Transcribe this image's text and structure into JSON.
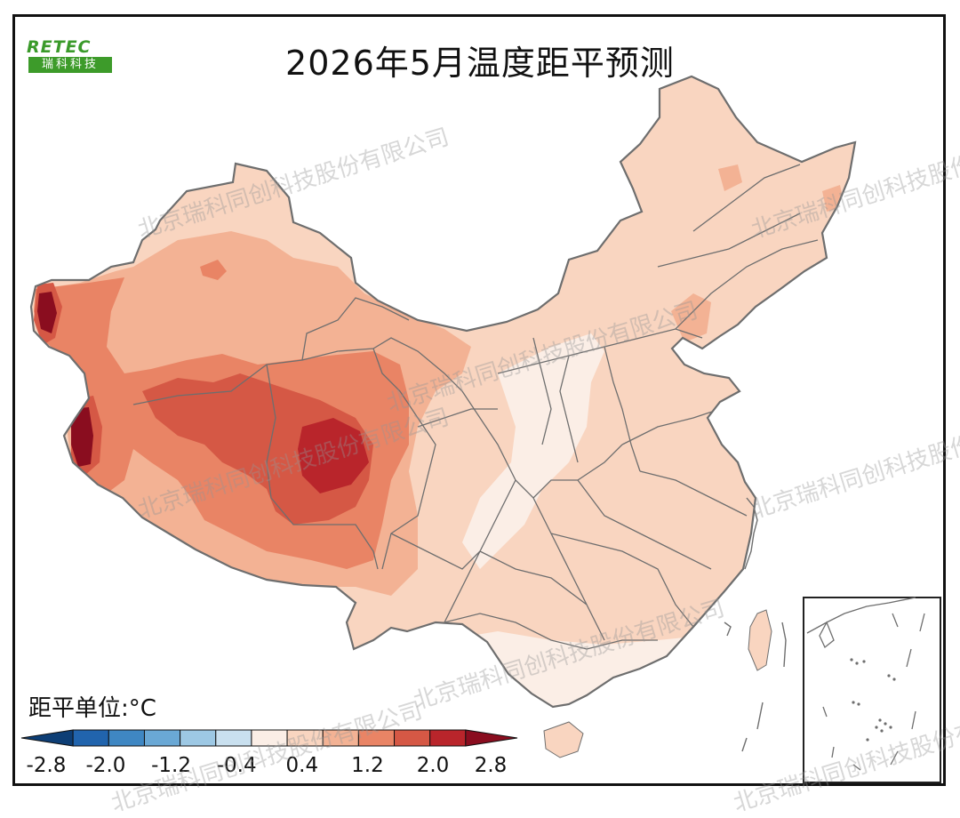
{
  "title": "2026年5月温度距平预测",
  "logo": {
    "brand": "RETEC",
    "subtitle": "瑞科科技"
  },
  "legend": {
    "unit_label": "距平单位:°C",
    "tick_labels": [
      "-2.8",
      "-2.0",
      "-1.2",
      "-0.4",
      "0.4",
      "1.2",
      "2.0",
      "2.8"
    ],
    "colors": [
      "#0d3e75",
      "#2164ad",
      "#3f87c3",
      "#6aa8d5",
      "#9dc8e4",
      "#c9e0ef",
      "#fbeee6",
      "#f9d5c0",
      "#f3b294",
      "#e98465",
      "#d55845",
      "#b9252b",
      "#8a0d1f"
    ],
    "bins": [
      -2.8,
      -2.4,
      -2.0,
      -1.6,
      -1.2,
      -0.8,
      -0.4,
      0.4,
      0.8,
      1.2,
      1.6,
      2.0,
      2.4,
      2.8
    ]
  },
  "watermark": "北京瑞科同创科技股份有限公司",
  "map_colors": {
    "base": "#f9d5c0",
    "pale": "#fbeee6",
    "mid": "#f3b294",
    "warm": "#e98465",
    "hot": "#d55845",
    "hottest": "#b9252b",
    "extreme": "#8a0d1f",
    "border": "#6e6e6e"
  }
}
